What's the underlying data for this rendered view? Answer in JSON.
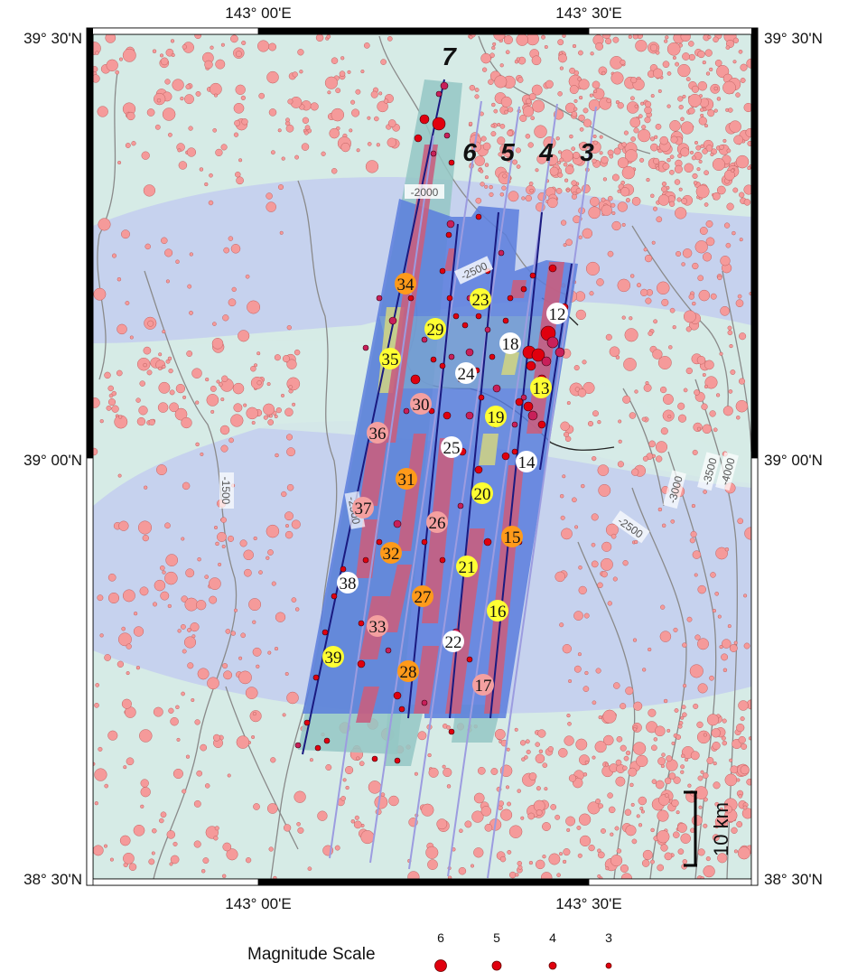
{
  "map": {
    "lat_labels": {
      "top": "39° 30'N",
      "mid": "39° 00'N",
      "bottom": "38° 30'N"
    },
    "lon_labels": {
      "left": "143° 00'E",
      "right": "143° 30'E"
    },
    "scale_bar_label": "10 km",
    "contour_labels": [
      "-2000",
      "-2500",
      "-1500",
      "-2500",
      "-2500",
      "-3000",
      "-3500",
      "-4000"
    ],
    "survey_lines": [
      "7",
      "6",
      "5",
      "4",
      "3"
    ],
    "stations": [
      "12",
      "13",
      "14",
      "15",
      "16",
      "17",
      "18",
      "19",
      "20",
      "21",
      "22",
      "23",
      "24",
      "25",
      "26",
      "27",
      "28",
      "29",
      "30",
      "31",
      "32",
      "33",
      "34",
      "35",
      "36",
      "37",
      "38",
      "39"
    ],
    "station_colors": {
      "white": "#ffffff",
      "yellow": "#ffff33",
      "orange": "#ff9a1a",
      "pink": "#f4a0a0"
    },
    "colors": {
      "sea_light": "#d6ebe6",
      "sea_band": "#c0cfee",
      "survey_blue": "#5b7edd",
      "survey_teal": "#94c7c4",
      "strip_red": "#c85f80",
      "quake_bg": "#f59a9a",
      "quake_hi": "#e0000e",
      "line_dark": "#1a1a80",
      "line_light": "#9c9ce0"
    }
  },
  "legend": {
    "title": "Magnitude Scale",
    "magnitudes": [
      "6",
      "5",
      "4",
      "3"
    ]
  }
}
